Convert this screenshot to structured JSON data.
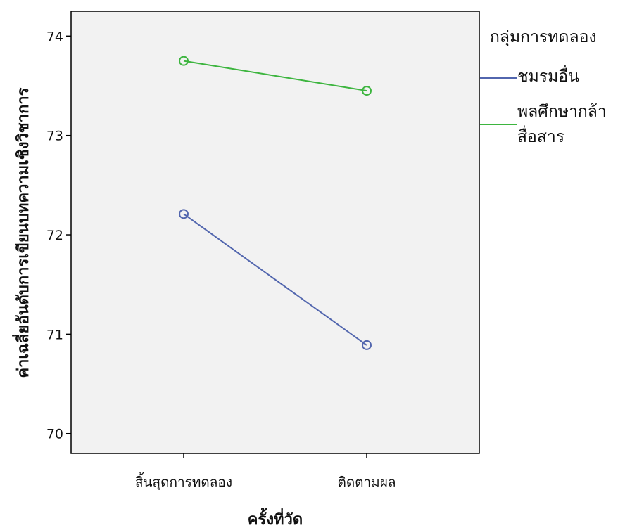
{
  "chart_data": {
    "type": "line",
    "xlabel": "ครั้งที่วัด",
    "ylabel": "ค่าเฉลี่ยอันดับการเขียนบทความเชิงวิชาการ",
    "categories": [
      "สิ้นสุดการทดลอง",
      "ติดตามผล"
    ],
    "ylim": [
      69.8,
      74.25
    ],
    "yticks": [
      70,
      71,
      72,
      73,
      74
    ],
    "ytick_labels": [
      "70",
      "71",
      "72",
      "73",
      "74"
    ],
    "grid": false,
    "legend": {
      "title": "กลุ่มการทดลอง",
      "placement": "right"
    },
    "series": [
      {
        "name": "ชมรมอื่น",
        "values": [
          72.21,
          70.89
        ],
        "color": "#5266AE",
        "marker": "open-circle"
      },
      {
        "name": "พลศึกษากล้าสื่อสาร",
        "name_lines": [
          "พลศึกษากล้า",
          "สื่อสาร"
        ],
        "values": [
          73.75,
          73.45
        ],
        "color": "#3DB53F",
        "marker": "open-circle"
      }
    ]
  },
  "colors": {
    "plot_background": "#F2F2F2",
    "frame": "#000000"
  }
}
